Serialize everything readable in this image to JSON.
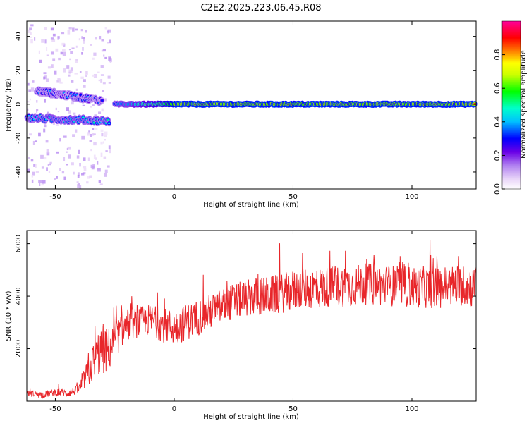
{
  "figure_title": "C2E2.2025.223.06.45.R08",
  "chart_data": [
    {
      "type": "heatmap",
      "title": "C2E2.2025.223.06.45.R08",
      "xlabel": "Height of straight line (km)",
      "ylabel": "Frequency (Hz)",
      "xlim": [
        -62,
        127
      ],
      "ylim": [
        -50,
        49
      ],
      "x_ticks": [
        -50,
        0,
        50,
        100
      ],
      "y_ticks": [
        -40,
        -20,
        0,
        20,
        40
      ],
      "colorbar": {
        "label": "Normalized spectral amplitude",
        "range": [
          0,
          1
        ],
        "ticks": [
          0.0,
          0.2,
          0.4,
          0.6,
          0.8
        ],
        "tick_labels": [
          "0.0",
          "0.2",
          "0.4",
          "0.6",
          "0.8"
        ],
        "colormap": [
          "#ffffff",
          "#e8d4f8",
          "#b080f0",
          "#6a00e6",
          "#0000ff",
          "#00ffff",
          "#00ff00",
          "#ffff00",
          "#ff8000",
          "#ff0000",
          "#ff00aa"
        ]
      },
      "features": [
        {
          "name": "main_line",
          "x_range": [
            -25,
            127
          ],
          "frequency": 0,
          "amplitude": 0.9
        },
        {
          "name": "upper_branch",
          "x_range": [
            -58,
            -30
          ],
          "frequency_range": [
            8,
            2
          ],
          "amplitude": 0.35
        },
        {
          "name": "lower_branch",
          "x_range": [
            -62,
            -27
          ],
          "frequency_range": [
            -8,
            -10
          ],
          "amplitude": 0.45
        }
      ]
    },
    {
      "type": "line",
      "xlabel": "Height of straight line (km)",
      "ylabel": "SNR (10 * v/v)",
      "xlim": [
        -62,
        127
      ],
      "ylim": [
        0,
        6500
      ],
      "x_ticks": [
        -50,
        0,
        50,
        100
      ],
      "y_ticks": [
        2000,
        4000,
        6000
      ],
      "series": [
        {
          "color": "#e8262a",
          "x": [
            -62,
            -55,
            -50,
            -45,
            -40,
            -38,
            -35,
            -32,
            -30,
            -28,
            -25,
            -22,
            -20,
            -15,
            -10,
            -5,
            0,
            5,
            10,
            15,
            20,
            25,
            30,
            35,
            40,
            45,
            50,
            55,
            60,
            65,
            70,
            75,
            80,
            85,
            90,
            95,
            100,
            105,
            110,
            115,
            120,
            127
          ],
          "y": [
            300,
            250,
            350,
            300,
            450,
            800,
            1300,
            1800,
            2000,
            1900,
            2300,
            2700,
            2900,
            3000,
            3100,
            2900,
            2800,
            3000,
            3200,
            3400,
            3600,
            3800,
            3900,
            4000,
            4000,
            4100,
            4200,
            4300,
            4300,
            4350,
            4400,
            4400,
            4450,
            4450,
            4400,
            4400,
            4350,
            4350,
            4300,
            4400,
            4400,
            4350
          ],
          "noise": [
            120,
            120,
            150,
            150,
            180,
            400,
            700,
            900,
            1000,
            900,
            700,
            650,
            600,
            600,
            600,
            650,
            700,
            700,
            700,
            700,
            700,
            700,
            700,
            750,
            750,
            750,
            800,
            800,
            800,
            800,
            800,
            800,
            800,
            800,
            800,
            800,
            800,
            800,
            800,
            800,
            800,
            800
          ]
        }
      ]
    }
  ]
}
